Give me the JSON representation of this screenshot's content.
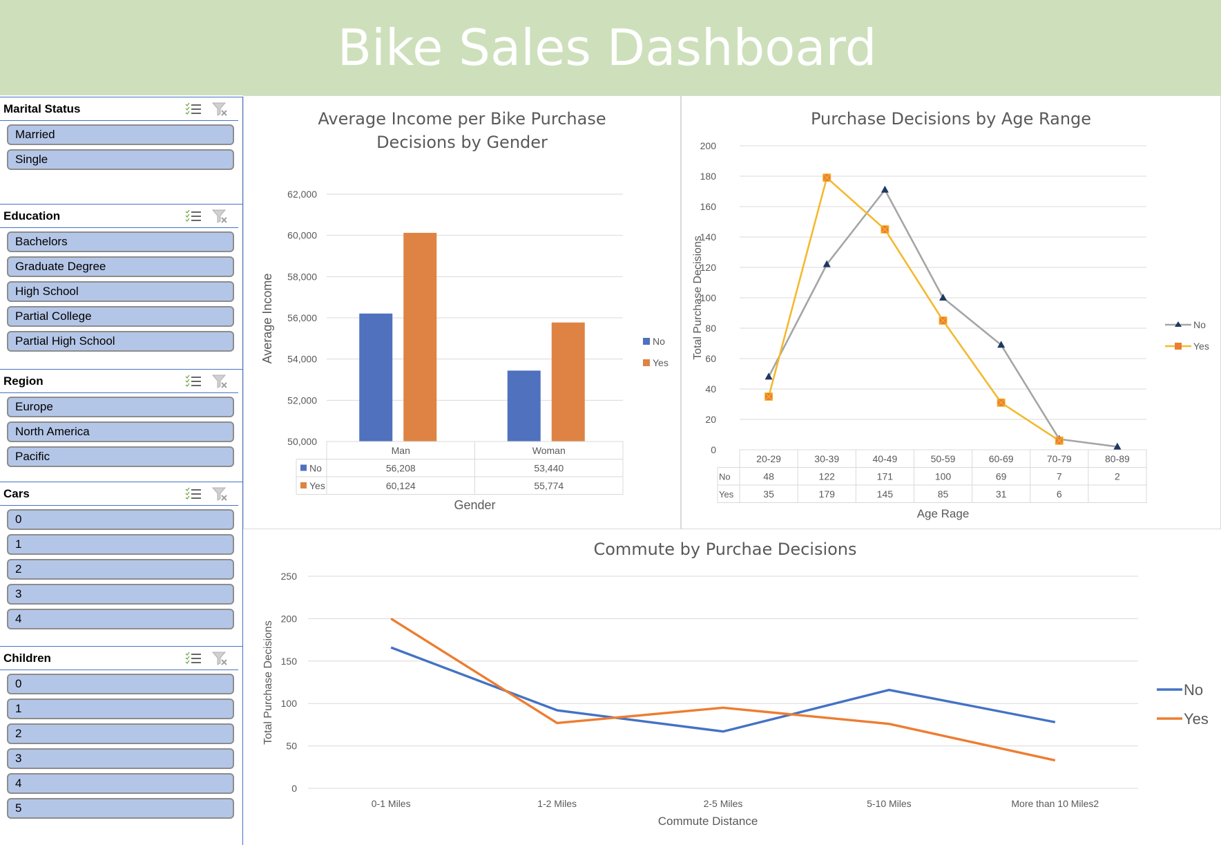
{
  "header": {
    "title": "Bike Sales Dashboard",
    "bg_color": "#cde0bb"
  },
  "slicers": [
    {
      "title": "Marital Status",
      "items": [
        "Married",
        "Single"
      ]
    },
    {
      "title": "Education",
      "items": [
        "Bachelors",
        "Graduate Degree",
        "High School",
        "Partial College",
        "Partial High School"
      ]
    },
    {
      "title": "Region",
      "items": [
        "Europe",
        "North America",
        "Pacific"
      ]
    },
    {
      "title": "Cars",
      "items": [
        "0",
        "1",
        "2",
        "3",
        "4"
      ]
    },
    {
      "title": "Children",
      "items": [
        "0",
        "1",
        "2",
        "3",
        "4",
        "5"
      ]
    }
  ],
  "slicer_icons": {
    "multiselect": "multi-select-icon",
    "clear": "clear-filter-icon"
  },
  "chart_data": [
    {
      "type": "bar",
      "title": "Average Income per Bike Purchase Decisions by Gender",
      "title_lines": [
        "Average Income per Bike Purchase",
        "Decisions by Gender"
      ],
      "categories": [
        "Man",
        "Woman"
      ],
      "series": [
        {
          "name": "No",
          "values": [
            56208,
            53440
          ],
          "labels": [
            "56,208",
            "53,440"
          ],
          "color": "#4f71be"
        },
        {
          "name": "Yes",
          "values": [
            60124,
            55774
          ],
          "labels": [
            "60,124",
            "55,774"
          ],
          "color": "#de8344"
        }
      ],
      "xlabel": "Gender",
      "ylabel": "Average Income",
      "ylim": [
        50000,
        62000
      ],
      "yticks": [
        "50,000",
        "52,000",
        "54,000",
        "56,000",
        "58,000",
        "60,000",
        "62,000"
      ],
      "grid": true,
      "legend": "right",
      "data_table": true
    },
    {
      "type": "line",
      "title": "Purchase Decisions by Age Range",
      "categories": [
        "20-29",
        "30-39",
        "40-49",
        "50-59",
        "60-69",
        "70-79",
        "80-89"
      ],
      "series": [
        {
          "name": "No",
          "values": [
            48,
            122,
            171,
            100,
            69,
            7,
            2
          ],
          "labels": [
            "48",
            "122",
            "171",
            "100",
            "69",
            "7",
            "2"
          ],
          "color": "#a5a5a5",
          "marker": "triangle",
          "marker_color": "#1f3864"
        },
        {
          "name": "Yes",
          "values": [
            35,
            179,
            145,
            85,
            31,
            6,
            null
          ],
          "labels": [
            "35",
            "179",
            "145",
            "85",
            "31",
            "6",
            ""
          ],
          "color": "#f4b92e",
          "marker": "x-square",
          "marker_color": "#ed7d31"
        }
      ],
      "xlabel": "Age  Rage",
      "ylabel": "Total Purchase Decisions",
      "ylim": [
        0,
        200
      ],
      "yticks": [
        "0",
        "20",
        "40",
        "60",
        "80",
        "100",
        "120",
        "140",
        "160",
        "180",
        "200"
      ],
      "grid": true,
      "legend": "right",
      "data_table": true
    },
    {
      "type": "line",
      "title": "Commute by Purchae Decisions",
      "categories": [
        "0-1 Miles",
        "1-2 Miles",
        "2-5 Miles",
        "5-10 Miles",
        "More than 10 Miles2"
      ],
      "series": [
        {
          "name": "No",
          "values": [
            166,
            92,
            67,
            116,
            78
          ],
          "color": "#4472c4"
        },
        {
          "name": "Yes",
          "values": [
            200,
            77,
            95,
            76,
            33
          ],
          "color": "#ed7d31"
        }
      ],
      "xlabel": "Commute Distance",
      "ylabel": "Total Purchase Decisions",
      "ylim": [
        0,
        250
      ],
      "yticks": [
        "0",
        "50",
        "100",
        "150",
        "200",
        "250"
      ],
      "grid": true,
      "legend": "right"
    }
  ]
}
